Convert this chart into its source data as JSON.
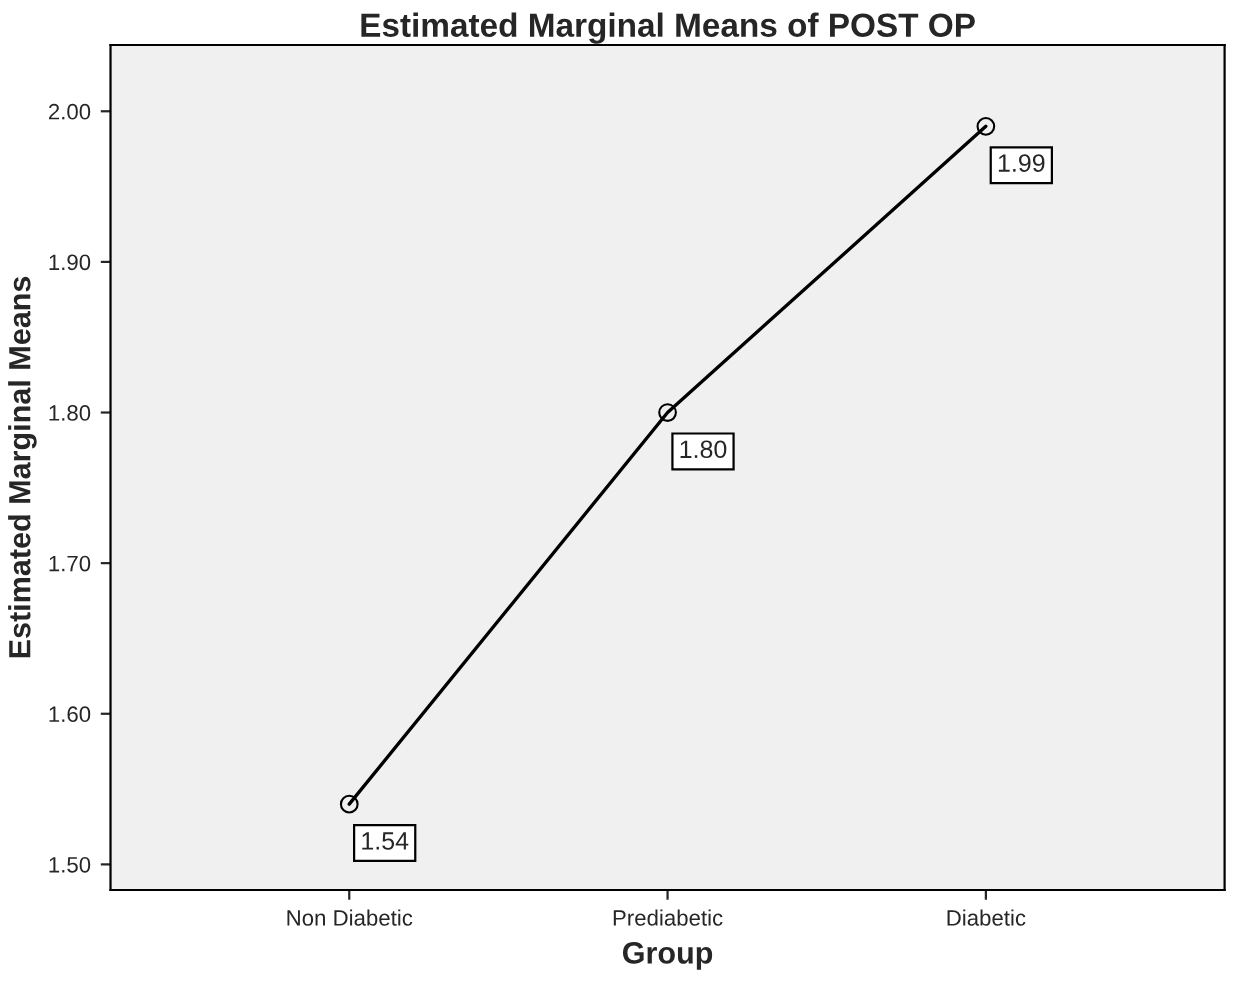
{
  "chart_data": {
    "type": "line",
    "title": "Estimated Marginal Means of POST OP",
    "xlabel": "Group",
    "ylabel": "Estimated Marginal Means",
    "categories": [
      "Non Diabetic",
      "Prediabetic",
      "Diabetic"
    ],
    "series": [
      {
        "color": "#000000",
        "values": [
          1.54,
          1.8,
          1.99
        ],
        "value_labels": [
          "1.54",
          "1.80",
          "1.99"
        ]
      }
    ],
    "ylim": [
      1.483,
      2.044
    ],
    "yticks": [
      {
        "value": 1.5,
        "label": "1.50"
      },
      {
        "value": 1.6,
        "label": "1.60"
      },
      {
        "value": 1.7,
        "label": "1.70"
      },
      {
        "value": 1.8,
        "label": "1.80"
      },
      {
        "value": 1.9,
        "label": "1.90"
      },
      {
        "value": 2.0,
        "label": "2.00"
      }
    ],
    "marker": "circle",
    "line_style": "solid",
    "grid": false,
    "legend": false
  }
}
